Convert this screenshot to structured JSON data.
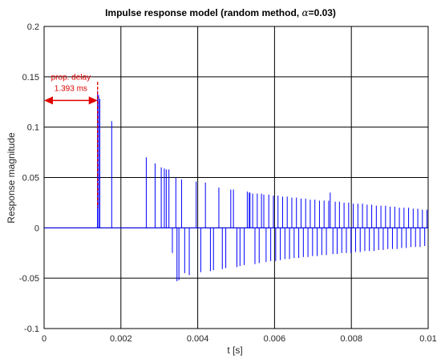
{
  "chart_data": {
    "type": "bar",
    "title_main": "Impulse response model (random method,",
    "title_greek": "α",
    "title_tail": "=0.03)",
    "xlabel": "t [s]",
    "ylabel": "Response magnitude",
    "xlim": [
      0,
      0.01
    ],
    "ylim": [
      -0.1,
      0.2
    ],
    "xticks": [
      0,
      0.002,
      0.004,
      0.006,
      0.008,
      0.01
    ],
    "xtick_labels": [
      "0",
      "0.002",
      "0.004",
      "0.006",
      "0.008",
      "0.01"
    ],
    "yticks": [
      -0.1,
      -0.05,
      0,
      0.05,
      0.1,
      0.15,
      0.2
    ],
    "ytick_labels": [
      "-0.1",
      "-0.05",
      "0",
      "0.05",
      "0.1",
      "0.15",
      "0.2"
    ],
    "grid": true,
    "series_color": "#0000ff",
    "annotation": {
      "line1": "prop. delay",
      "line2": "1.393 ms",
      "delay_s": 0.001393,
      "color": "#e00000"
    },
    "impulses": {
      "t": [
        0.00139,
        0.00142,
        0.00145,
        0.00176,
        0.00266,
        0.00289,
        0.00305,
        0.00313,
        0.00318,
        0.00325,
        0.00334,
        0.00343,
        0.00346,
        0.00351,
        0.00358,
        0.00366,
        0.00378,
        0.00396,
        0.00408,
        0.0042,
        0.00433,
        0.00441,
        0.00455,
        0.00464,
        0.00473,
        0.00486,
        0.00493,
        0.00502,
        0.0051,
        0.00521,
        0.00529,
        0.00534,
        0.00536,
        0.00543,
        0.00549,
        0.00555,
        0.0056,
        0.00566,
        0.00572,
        0.00578,
        0.00585,
        0.0059,
        0.00597,
        0.00603,
        0.00609,
        0.00615,
        0.00621,
        0.00627,
        0.00633,
        0.00639,
        0.00645,
        0.00651,
        0.00657,
        0.00663,
        0.00669,
        0.00675,
        0.00681,
        0.00687,
        0.00693,
        0.00699,
        0.00705,
        0.00711,
        0.00717,
        0.00723,
        0.00729,
        0.00735,
        0.00741,
        0.00745,
        0.00752,
        0.00758,
        0.00763,
        0.00769,
        0.00775,
        0.00781,
        0.00787,
        0.00793,
        0.00799,
        0.00805,
        0.00811,
        0.00817,
        0.00823,
        0.00829,
        0.00835,
        0.00841,
        0.00847,
        0.00853,
        0.00859,
        0.00865,
        0.00871,
        0.00877,
        0.00883,
        0.00889,
        0.00895,
        0.00901,
        0.00907,
        0.00913,
        0.00919,
        0.00925,
        0.00931,
        0.00937,
        0.00943,
        0.00949,
        0.00955,
        0.00961,
        0.00967,
        0.00973,
        0.00979,
        0.00985,
        0.00991,
        0.00997
      ],
      "y": [
        0.136,
        0.132,
        0.128,
        0.106,
        0.07,
        0.064,
        0.06,
        0.059,
        0.058,
        0.058,
        -0.025,
        0.05,
        -0.053,
        -0.052,
        0.048,
        -0.045,
        -0.047,
        0.046,
        -0.044,
        0.045,
        -0.043,
        -0.042,
        0.04,
        -0.041,
        -0.04,
        0.038,
        0.038,
        -0.039,
        -0.038,
        -0.037,
        0.036,
        0.035,
        0.035,
        0.034,
        -0.036,
        0.034,
        -0.035,
        0.034,
        0.033,
        -0.034,
        0.033,
        -0.033,
        0.032,
        -0.033,
        0.032,
        -0.032,
        0.031,
        -0.031,
        0.031,
        -0.031,
        0.03,
        -0.03,
        0.03,
        -0.03,
        0.029,
        -0.029,
        0.029,
        -0.029,
        0.028,
        -0.028,
        0.028,
        -0.028,
        0.027,
        -0.027,
        0.027,
        -0.027,
        0.027,
        0.035,
        -0.026,
        0.026,
        -0.026,
        0.026,
        -0.025,
        0.025,
        -0.025,
        0.025,
        -0.025,
        0.024,
        -0.024,
        0.024,
        -0.024,
        0.024,
        -0.023,
        0.023,
        -0.023,
        0.023,
        -0.023,
        0.022,
        -0.022,
        0.022,
        -0.022,
        0.022,
        -0.021,
        0.021,
        -0.021,
        0.021,
        -0.021,
        0.02,
        -0.02,
        0.02,
        -0.02,
        0.02,
        -0.019,
        0.019,
        -0.019,
        0.019,
        -0.019,
        0.018,
        -0.018,
        0.018
      ]
    }
  }
}
